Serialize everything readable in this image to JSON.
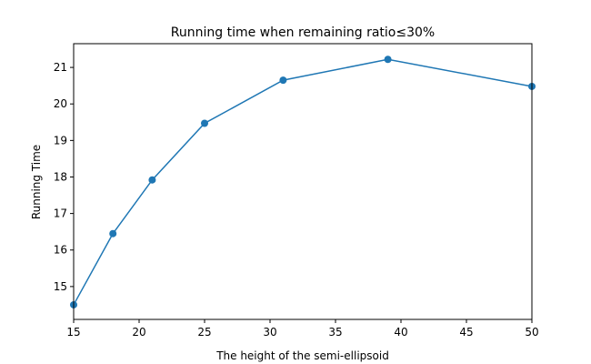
{
  "chart_data": {
    "type": "line",
    "title": "Running time when remaining ratio≤30%",
    "xlabel": "The height of the semi-ellipsoid",
    "ylabel": "Running Time",
    "xlim": [
      15,
      50
    ],
    "ylim": [
      14.1,
      21.65
    ],
    "xticks": [
      15,
      20,
      25,
      30,
      35,
      40,
      45,
      50
    ],
    "yticks": [
      15,
      16,
      17,
      18,
      19,
      20,
      21
    ],
    "grid": false,
    "series": [
      {
        "color": "#1f77b4",
        "marker": "circle",
        "x": [
          15,
          18,
          21,
          25,
          31,
          39,
          50
        ],
        "y": [
          14.5,
          16.45,
          17.92,
          19.47,
          20.65,
          21.22,
          20.48
        ]
      }
    ]
  }
}
